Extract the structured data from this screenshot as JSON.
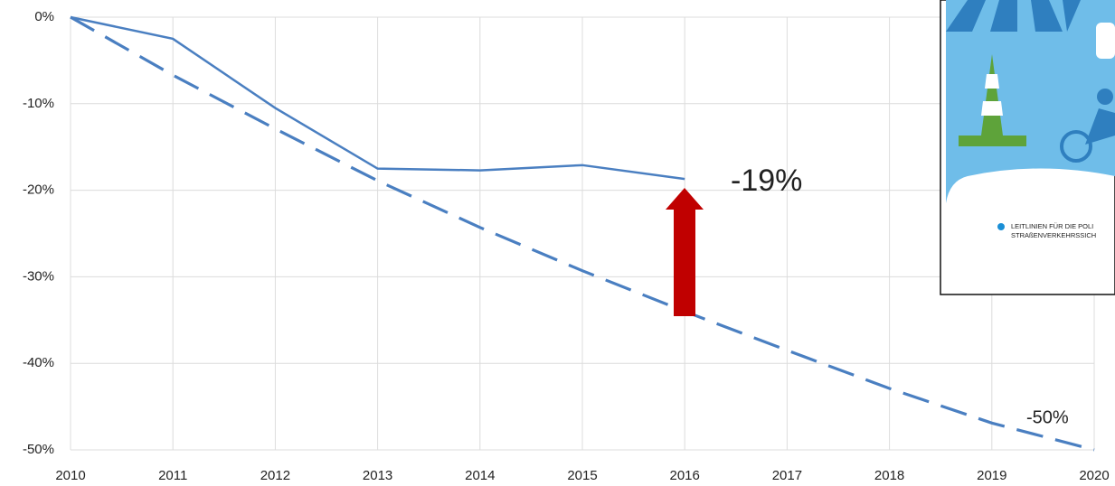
{
  "chart_data": {
    "type": "line",
    "x": [
      2010,
      2011,
      2012,
      2013,
      2014,
      2015,
      2016,
      2017,
      2018,
      2019,
      2020
    ],
    "series": [
      {
        "color": "#4a7fc1",
        "dashed": false,
        "values": [
          0,
          -2.5,
          -10.5,
          -17.5,
          -17.7,
          -17.1,
          -18.7,
          null,
          null,
          null,
          null
        ]
      },
      {
        "color": "#4a7fc1",
        "dashed": true,
        "values": [
          0,
          -6.7,
          -12.9,
          -18.9,
          -24.3,
          -29.3,
          -34,
          -38.5,
          -42.9,
          -46.9,
          -50
        ]
      }
    ],
    "xlim": [
      2010,
      2020
    ],
    "xticks": [
      2010,
      2011,
      2012,
      2013,
      2014,
      2015,
      2016,
      2017,
      2018,
      2019,
      2020
    ],
    "ylim": [
      -50,
      0
    ],
    "yticks": [
      {
        "value": 0,
        "label": "0%"
      },
      {
        "value": -10,
        "label": "-10%"
      },
      {
        "value": -20,
        "label": "-20%"
      },
      {
        "value": -30,
        "label": "-30%"
      },
      {
        "value": -40,
        "label": "-40%"
      },
      {
        "value": -50,
        "label": "-50%"
      }
    ],
    "grid": true,
    "annotations": [
      "-19%",
      "-50%"
    ]
  },
  "inset": {
    "lines": [
      "LEITLINIEN FÜR DIE POLI",
      "STRAßENVERKEHRSSICH"
    ]
  }
}
